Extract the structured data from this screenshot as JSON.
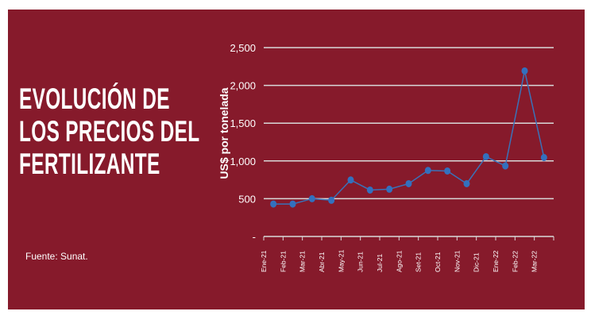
{
  "colors": {
    "background": "#861a2b",
    "line": "#3a72b8",
    "marker": "#3370be",
    "grid": "#d9d9d9"
  },
  "title_lines": [
    "EVOLUCIÓN DE",
    "LOS PRECIOS DEL",
    "FERTILIZANTE"
  ],
  "source": "Fuente: Sunat.",
  "chart_data": {
    "type": "line",
    "title": "",
    "xlabel": "",
    "ylabel": "US$ por tonelada",
    "ylim": [
      0,
      2500
    ],
    "yticks": [
      0,
      500,
      1000,
      1500,
      2000,
      2500
    ],
    "ytick_labels": [
      "-",
      "500",
      "1,000",
      "1,500",
      "2,000",
      "2,500"
    ],
    "grid": true,
    "categories": [
      "Ene-21",
      "Feb-21",
      "Mar-21",
      "Abr-21",
      "May-21",
      "Jun-21",
      "Jul-21",
      "Ago-21",
      "Set-21",
      "Oct-21",
      "Nov-21",
      "Dic-21",
      "Ene-22",
      "Feb-22",
      "Mar-22"
    ],
    "series": [
      {
        "values": [
          430,
          430,
          500,
          479,
          748,
          615,
          626,
          699,
          874,
          867,
          699,
          1056,
          934,
          2192,
          1045
        ]
      }
    ]
  }
}
